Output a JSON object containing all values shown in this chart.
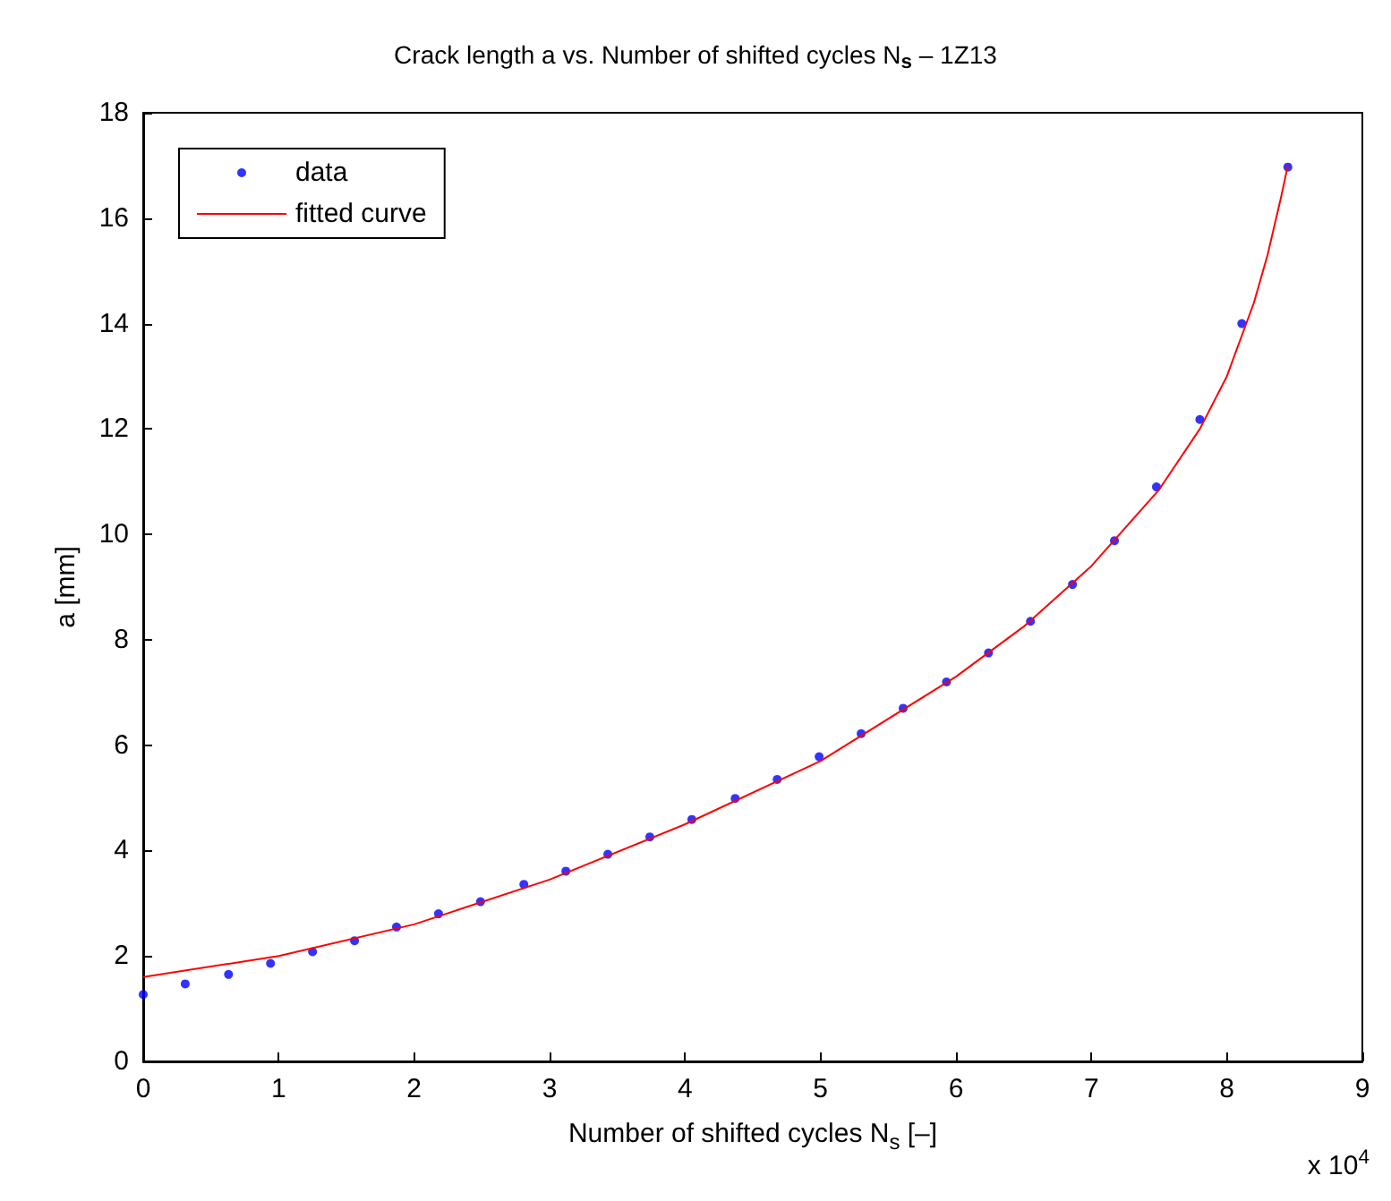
{
  "chart_data": {
    "type": "scatter",
    "title": "Crack length a vs. Number of shifted cycles N$_{s}$ – 1Z13",
    "xlabel": "Number of shifted cycles N$_{s}$ [–]",
    "ylabel": "a [mm]",
    "annotations": [
      "x 10$^{4}$"
    ],
    "xlim": [
      0,
      9
    ],
    "xticks": [
      0,
      1,
      2,
      3,
      4,
      5,
      6,
      7,
      8,
      9
    ],
    "ylim": [
      0,
      18
    ],
    "yticks": [
      0,
      2,
      4,
      6,
      8,
      10,
      12,
      14,
      16,
      18
    ],
    "grid": false,
    "legend": "top left",
    "series": [
      {
        "name": "data",
        "type": "scatter",
        "marker": "circle",
        "color": "#0000ff",
        "x": [
          0,
          0.31,
          0.63,
          0.94,
          1.25,
          1.56,
          1.87,
          2.18,
          2.49,
          2.81,
          3.12,
          3.43,
          3.74,
          4.05,
          4.37,
          4.68,
          4.99,
          5.3,
          5.61,
          5.93,
          6.24,
          6.55,
          6.86,
          7.17,
          7.48,
          7.8,
          8.11,
          8.45
        ],
        "values": [
          1.27,
          1.47,
          1.65,
          1.86,
          2.08,
          2.29,
          2.55,
          2.8,
          3.03,
          3.36,
          3.61,
          3.93,
          4.26,
          4.59,
          4.99,
          5.35,
          5.78,
          6.22,
          6.7,
          7.2,
          7.75,
          8.35,
          9.05,
          9.88,
          10.9,
          12.18,
          14.0,
          16.97
        ]
      },
      {
        "name": "fitted curve",
        "type": "line",
        "marker": "none",
        "line_style": "solid",
        "color": "#ff0000",
        "x": [
          0,
          1,
          2,
          3,
          4,
          5,
          6,
          6.5,
          7,
          7.5,
          7.8,
          8,
          8.2,
          8.3,
          8.4,
          8.45
        ],
        "values": [
          1.6,
          2.0,
          2.6,
          3.45,
          4.5,
          5.7,
          7.3,
          8.25,
          9.4,
          10.85,
          12.0,
          13.0,
          14.4,
          15.3,
          16.4,
          17.0
        ]
      }
    ]
  }
}
